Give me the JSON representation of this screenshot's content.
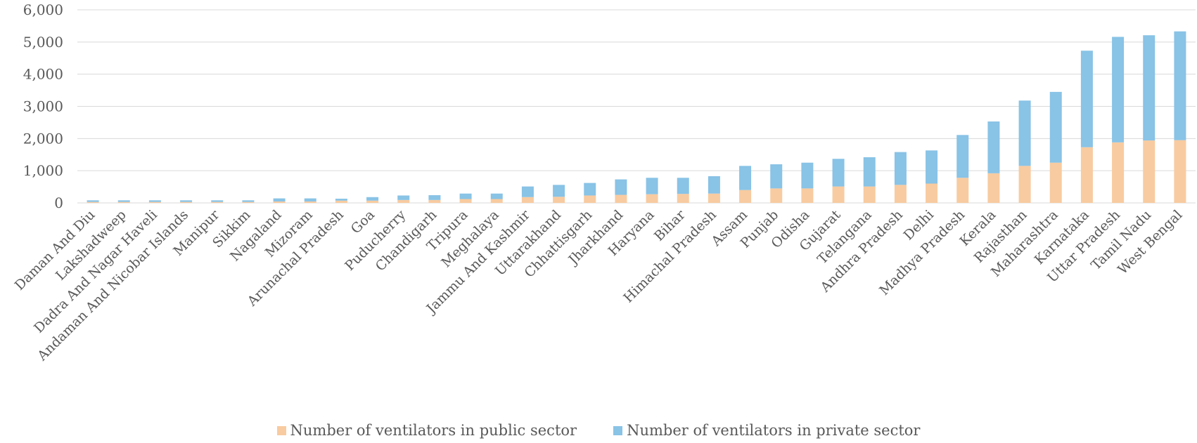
{
  "chart_data": {
    "type": "bar",
    "stacked": true,
    "categories": [
      "Daman And Diu",
      "Lakshadweep",
      "Dadra And Nagar Haveli",
      "Andaman And Nicobar Islands",
      "Manipur",
      "Sikkim",
      "Nagaland",
      "Mizoram",
      "Arunachal Pradesh",
      "Goa",
      "Puducherry",
      "Chandigarh",
      "Tripura",
      "Meghalaya",
      "Jammu And Kashmir",
      "Uttarakhand",
      "Chhattisgarh",
      "Jharkhand",
      "Haryana",
      "Bihar",
      "Himachal Pradesh",
      "Assam",
      "Punjab",
      "Odisha",
      "Gujarat",
      "Telangana",
      "Andhra Pradesh",
      "Delhi",
      "Madhya Pradesh",
      "Kerala",
      "Rajasthan",
      "Maharashtra",
      "Karnataka",
      "Uttar Pradesh",
      "Tamil Nadu",
      "West Bengal"
    ],
    "series": [
      {
        "name": "Number of ventilators in public sector",
        "color": "#F8CBA0",
        "values": [
          30,
          30,
          30,
          30,
          30,
          30,
          45,
          45,
          70,
          70,
          90,
          90,
          120,
          120,
          180,
          190,
          230,
          250,
          270,
          280,
          290,
          400,
          450,
          450,
          510,
          510,
          560,
          600,
          780,
          920,
          1150,
          1250,
          1730,
          1880,
          1940,
          1950
        ]
      },
      {
        "name": "Number of ventilators in private sector",
        "color": "#89C3E6",
        "values": [
          50,
          50,
          50,
          50,
          50,
          50,
          95,
          95,
          60,
          110,
          140,
          150,
          170,
          170,
          330,
          370,
          390,
          480,
          510,
          500,
          540,
          750,
          750,
          800,
          860,
          910,
          1020,
          1030,
          1330,
          1610,
          2030,
          2200,
          3000,
          3280,
          3270,
          3380
        ]
      }
    ],
    "ylim": [
      0,
      6000
    ],
    "yticks": [
      "0",
      "1,000",
      "2,000",
      "3,000",
      "4,000",
      "5,000",
      "6,000"
    ],
    "ytick_values": [
      0,
      1000,
      2000,
      3000,
      4000,
      5000,
      6000
    ],
    "grid": true,
    "legend": "bottom",
    "title": "",
    "xlabel": "",
    "ylabel": ""
  }
}
